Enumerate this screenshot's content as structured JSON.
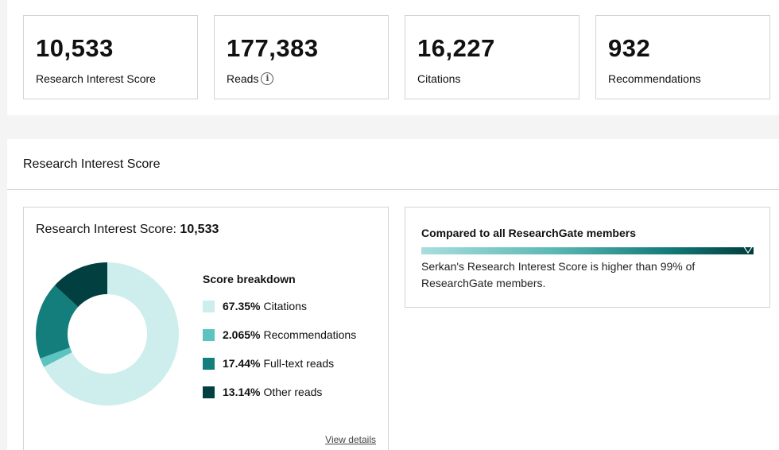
{
  "stats": [
    {
      "value": "10,533",
      "label": "Research Interest Score",
      "info": false
    },
    {
      "value": "177,383",
      "label": "Reads",
      "info": true
    },
    {
      "value": "16,227",
      "label": "Citations",
      "info": false
    },
    {
      "value": "932",
      "label": "Recommendations",
      "info": false
    }
  ],
  "section": {
    "title": "Research Interest Score"
  },
  "score_card": {
    "heading_prefix": "Research Interest Score:",
    "heading_value": "10,533",
    "breakdown_title": "Score breakdown",
    "view_details": "View details",
    "items": [
      {
        "pct": "67.35%",
        "label": "Citations",
        "value": 67.35,
        "color": "#cdeeed"
      },
      {
        "pct": "2.065%",
        "label": "Recommendations",
        "value": 2.065,
        "color": "#5cc3c1"
      },
      {
        "pct": "17.44%",
        "label": "Full-text reads",
        "value": 17.44,
        "color": "#137e7b"
      },
      {
        "pct": "13.14%",
        "label": "Other reads",
        "value": 13.14,
        "color": "#013f40"
      }
    ]
  },
  "compare": {
    "title": "Compared to all ResearchGate members",
    "text": "Serkan's Research Interest Score is higher than 99% of ResearchGate members.",
    "percentile": 99
  },
  "icons": {
    "info": "info-icon"
  }
}
